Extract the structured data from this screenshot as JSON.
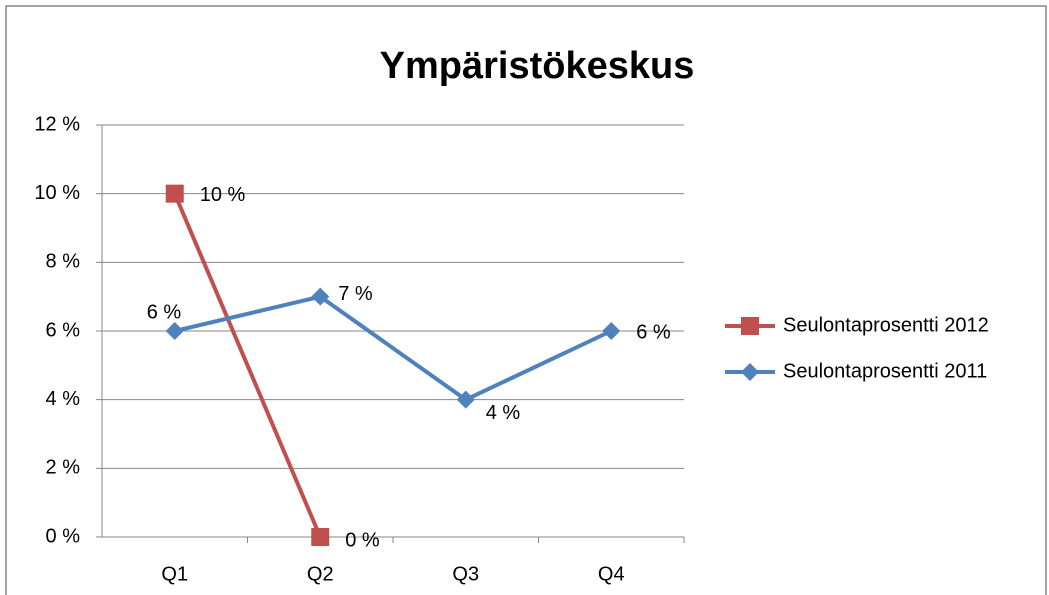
{
  "chart_data": {
    "type": "line",
    "title": "Ympäristökeskus",
    "categories": [
      "Q1",
      "Q2",
      "Q3",
      "Q4"
    ],
    "series": [
      {
        "name": "Seulontaprosentti 2012",
        "color": "#c0504d",
        "marker": "square",
        "values": [
          10,
          0,
          null,
          null
        ],
        "value_labels": [
          "10 %",
          "0 %",
          null,
          null
        ]
      },
      {
        "name": "Seulontaprosentti 2011",
        "color": "#4f81bd",
        "marker": "diamond",
        "values": [
          6,
          7,
          4,
          6
        ],
        "value_labels": [
          "6 %",
          "7 %",
          "4 %",
          "6 %"
        ]
      }
    ],
    "ylim": [
      0,
      12
    ],
    "yticks": [
      {
        "value": 0,
        "label": "0 %"
      },
      {
        "value": 2,
        "label": "2 %"
      },
      {
        "value": 4,
        "label": "4 %"
      },
      {
        "value": 6,
        "label": "6 %"
      },
      {
        "value": 8,
        "label": "8 %"
      },
      {
        "value": 10,
        "label": "10 %"
      },
      {
        "value": 12,
        "label": "12 %"
      }
    ],
    "grid": true,
    "legend": "right"
  }
}
